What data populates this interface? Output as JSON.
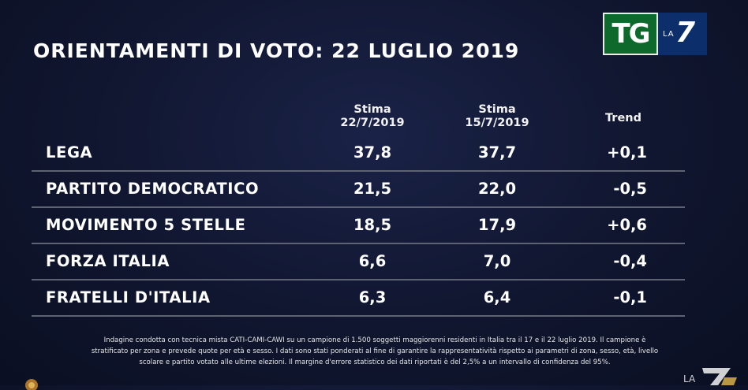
{
  "title": "ORIENTAMENTI DI VOTO: 22 LUGLIO 2019",
  "logo": {
    "tg": "TG",
    "la": "LA",
    "seven": "7"
  },
  "chart_data": {
    "type": "table",
    "columns": [
      {
        "line1": "Stima",
        "line2": "22/7/2019"
      },
      {
        "line1": "Stima",
        "line2": "15/7/2019"
      },
      {
        "line1": "Trend",
        "line2": ""
      }
    ],
    "rows": [
      {
        "party": "LEGA",
        "stima_22": "37,8",
        "stima_15": "37,7",
        "trend": "+0,1"
      },
      {
        "party": "PARTITO DEMOCRATICO",
        "stima_22": "21,5",
        "stima_15": "22,0",
        "trend": "-0,5"
      },
      {
        "party": "MOVIMENTO 5 STELLE",
        "stima_22": "18,5",
        "stima_15": "17,9",
        "trend": "+0,6"
      },
      {
        "party": "FORZA ITALIA",
        "stima_22": "6,6",
        "stima_15": "7,0",
        "trend": "-0,4"
      },
      {
        "party": "FRATELLI D'ITALIA",
        "stima_22": "6,3",
        "stima_15": "6,4",
        "trend": "-0,1"
      }
    ]
  },
  "note": {
    "line1": "Indagine condotta con tecnica mista CATI-CAMI-CAWI su un campione di 1.500 soggetti maggiorenni residenti in Italia tra il 17 e il 22  luglio 2019. Il campione è",
    "line2": "stratificato per zona e prevede quote per età e sesso. I dati sono stati ponderati al fine di garantire la rappresentatività rispetto ai parametri di zona, sesso, età, livello",
    "line3": "scolare e partito votato alle ultime elezioni. Il margine d'errore statistico dei dati riportati è del 2,5% a un intervallo di confidenza del 95%."
  },
  "colors": {
    "tg_green": "#0d6a2c",
    "la7_blue": "#0c2f6b",
    "divider": "#5d6373"
  }
}
